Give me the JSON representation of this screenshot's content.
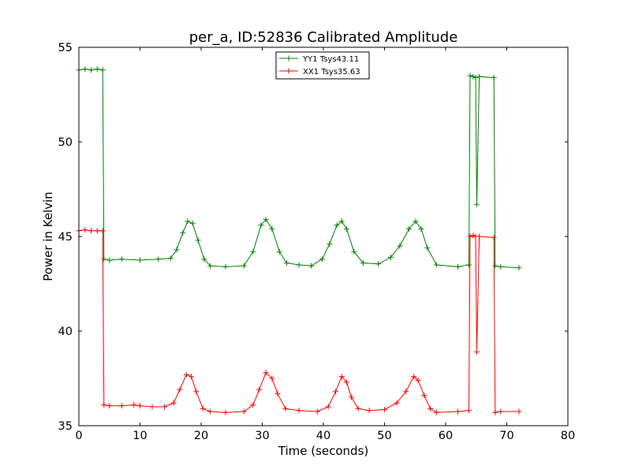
{
  "chart_data": {
    "type": "line",
    "title": "per_a, ID:52836 Calibrated Amplitude",
    "xlabel": "Time (seconds)",
    "ylabel": "Power in Kelvin",
    "xlim": [
      0,
      80
    ],
    "ylim": [
      35,
      55
    ],
    "xticks": [
      0,
      10,
      20,
      30,
      40,
      50,
      60,
      70,
      80
    ],
    "yticks": [
      35,
      40,
      45,
      50,
      55
    ],
    "grid": false,
    "legend": "top-center",
    "marker": "+",
    "series": [
      {
        "name": "YY1 Tsys43.11",
        "color": "#008000",
        "x": [
          0,
          1,
          2,
          3,
          3.9,
          4.1,
          5,
          7,
          10,
          13,
          15,
          16,
          17,
          17.8,
          18.6,
          19.5,
          20.5,
          21.5,
          24,
          27,
          28.5,
          29.8,
          30.6,
          31.6,
          32.8,
          34,
          36,
          38,
          39.8,
          41,
          42.2,
          43,
          43.8,
          45,
          46.5,
          49,
          51,
          52.5,
          54,
          55.1,
          56,
          57,
          58.5,
          62,
          63.8,
          64,
          64.5,
          64.9,
          65.1,
          65.5,
          67.9,
          68.1,
          69,
          72
        ],
        "values": [
          53.8,
          53.85,
          53.8,
          53.85,
          53.8,
          43.8,
          43.75,
          43.8,
          43.75,
          43.8,
          43.85,
          44.3,
          45.2,
          45.8,
          45.7,
          44.8,
          43.8,
          43.45,
          43.4,
          43.45,
          44.2,
          45.6,
          45.9,
          45.4,
          44.2,
          43.6,
          43.5,
          43.45,
          43.8,
          44.6,
          45.6,
          45.8,
          45.4,
          44.2,
          43.6,
          43.55,
          43.9,
          44.5,
          45.4,
          45.8,
          45.4,
          44.4,
          43.5,
          43.4,
          43.5,
          53.5,
          53.45,
          53.4,
          46.7,
          53.45,
          53.4,
          43.45,
          43.4,
          43.35
        ]
      },
      {
        "name": "XX1 Tsys35.63",
        "color": "#ff0000",
        "x": [
          0,
          1,
          2,
          3,
          3.9,
          4.1,
          5,
          7,
          9,
          10,
          12,
          14,
          15.5,
          16.5,
          17.6,
          18.4,
          19.2,
          20.3,
          21.5,
          24,
          27,
          28.5,
          29.5,
          30.6,
          31.6,
          32.5,
          33.8,
          36,
          39,
          40.8,
          42,
          43,
          43.8,
          44.6,
          45.7,
          47.5,
          50,
          52,
          53.5,
          54.8,
          55.5,
          56.5,
          57.5,
          58.5,
          62,
          63.8,
          64,
          64.5,
          64.9,
          65.1,
          65.5,
          67.9,
          68.1,
          69,
          72
        ],
        "values": [
          45.3,
          45.35,
          45.3,
          45.3,
          45.3,
          36.1,
          36.05,
          36.05,
          36.1,
          36.05,
          36.0,
          36.0,
          36.2,
          36.9,
          37.7,
          37.6,
          36.8,
          35.9,
          35.75,
          35.7,
          35.75,
          36.1,
          36.9,
          37.8,
          37.5,
          36.7,
          35.9,
          35.8,
          35.75,
          36.0,
          36.8,
          37.6,
          37.3,
          36.5,
          35.9,
          35.8,
          35.85,
          36.2,
          36.8,
          37.6,
          37.4,
          36.6,
          35.9,
          35.7,
          35.75,
          35.8,
          45.0,
          45.05,
          45.0,
          38.9,
          45.0,
          44.95,
          35.7,
          35.75,
          35.75
        ]
      }
    ]
  }
}
